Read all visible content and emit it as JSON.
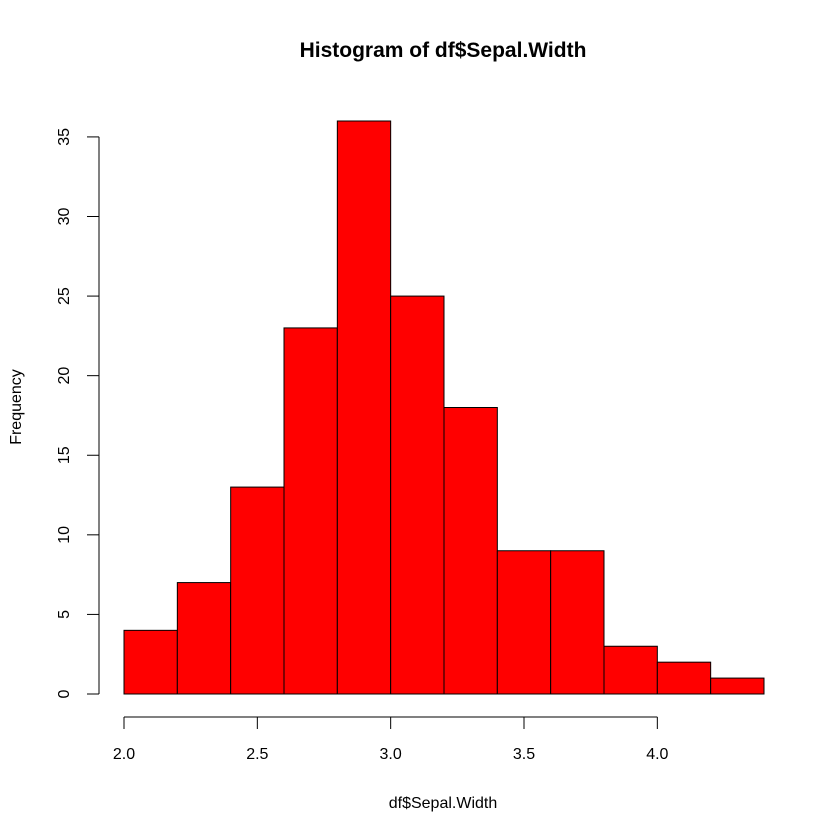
{
  "chart_data": {
    "type": "bar",
    "title": "Histogram of df$Sepal.Width",
    "xlabel": "df$Sepal.Width",
    "ylabel": "Frequency",
    "bin_edges": [
      2.0,
      2.2,
      2.4,
      2.6,
      2.8,
      3.0,
      3.2,
      3.4,
      3.6,
      3.8,
      4.0,
      4.2,
      4.4
    ],
    "values": [
      4,
      7,
      13,
      23,
      36,
      25,
      18,
      9,
      9,
      3,
      2,
      1
    ],
    "xlim": [
      2.0,
      4.4
    ],
    "ylim": [
      0,
      36
    ],
    "x_ticks": [
      "2.0",
      "2.5",
      "3.0",
      "3.5",
      "4.0"
    ],
    "y_ticks": [
      "0",
      "5",
      "10",
      "15",
      "20",
      "25",
      "30",
      "35"
    ],
    "bar_color": "#ff0000",
    "grid": false
  }
}
